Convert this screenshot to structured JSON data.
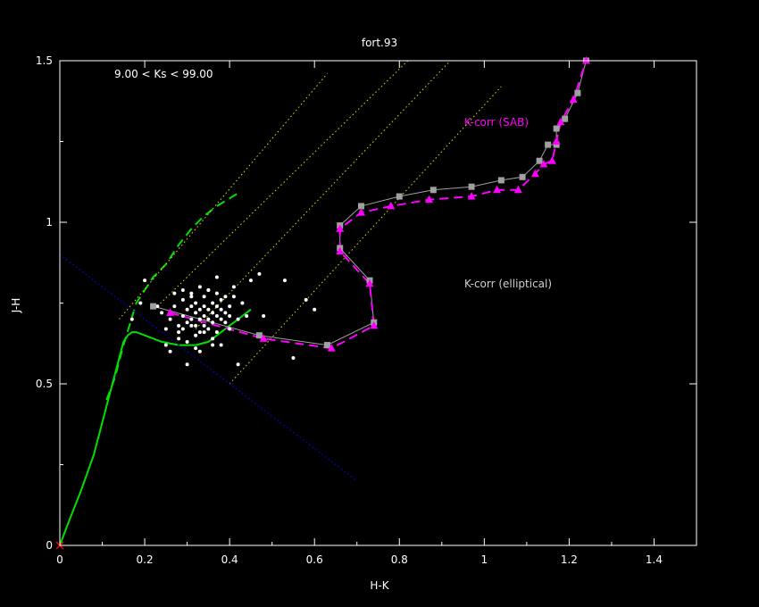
{
  "chart_data": {
    "type": "scatter",
    "title": "fort.93",
    "xlabel": "H-K",
    "ylabel": "J-H",
    "xlim": [
      0,
      1.5
    ],
    "ylim": [
      0,
      1.5
    ],
    "xticks": [
      0,
      0.2,
      0.4,
      0.6,
      0.8,
      1,
      1.2,
      1.4
    ],
    "xtick_labels": [
      "0",
      "0.2",
      "0.4",
      "0.6",
      "0.8",
      "1",
      "1.2",
      "1.4"
    ],
    "yticks": [
      0,
      0.5,
      1,
      1.5
    ],
    "ytick_labels": [
      "0",
      "0.5",
      "1",
      "1.5"
    ],
    "grid": false,
    "background": "#000000",
    "annotations": {
      "mag_range": "9.00 < Ks <  99.00",
      "k_corr_sab": "K-corr (SAB)",
      "k_corr_elliptical": "K-corr (elliptical)"
    },
    "colors": {
      "data_points": "#ffffff",
      "dwarf_giant_tracks": "#00e000",
      "reddening_lines": "#e0e000",
      "blue_line": "#0000cc",
      "elliptical_track": "#a0a0a0",
      "sab_track": "#ff00ff",
      "origin_marker": "#ff0000"
    },
    "series": [
      {
        "role": "dwarf_locus",
        "style": "solid",
        "x": [
          0.0,
          0.02,
          0.05,
          0.08,
          0.1,
          0.12,
          0.14,
          0.15,
          0.16,
          0.17,
          0.18,
          0.2,
          0.24,
          0.28,
          0.32,
          0.35,
          0.37,
          0.4,
          0.43,
          0.45
        ],
        "y": [
          0.0,
          0.07,
          0.17,
          0.28,
          0.38,
          0.48,
          0.58,
          0.63,
          0.65,
          0.66,
          0.66,
          0.65,
          0.63,
          0.62,
          0.62,
          0.63,
          0.65,
          0.68,
          0.71,
          0.73
        ]
      },
      {
        "role": "giant_locus",
        "style": "dashed",
        "x": [
          0.11,
          0.13,
          0.15,
          0.18,
          0.2,
          0.22,
          0.25,
          0.28,
          0.31,
          0.34,
          0.37,
          0.42
        ],
        "y": [
          0.45,
          0.52,
          0.62,
          0.75,
          0.79,
          0.83,
          0.87,
          0.93,
          0.98,
          1.02,
          1.05,
          1.09
        ]
      },
      {
        "role": "reddening_vector",
        "style": "dotted",
        "x": [
          0.14,
          0.63
        ],
        "y": [
          0.7,
          1.46
        ]
      },
      {
        "role": "reddening_vector",
        "style": "dotted",
        "x": [
          0.23,
          0.82
        ],
        "y": [
          0.74,
          1.5
        ]
      },
      {
        "role": "reddening_vector",
        "style": "dotted",
        "x": [
          0.32,
          0.92
        ],
        "y": [
          0.67,
          1.5
        ]
      },
      {
        "role": "reddening_vector",
        "style": "dotted",
        "x": [
          0.4,
          1.04
        ],
        "y": [
          0.5,
          1.42
        ]
      },
      {
        "role": "blue_boundary",
        "style": "dotted",
        "x": [
          0.0,
          0.7
        ],
        "y": [
          0.9,
          0.2
        ]
      },
      {
        "name": "K-corr (elliptical)",
        "role": "elliptical_track",
        "style": "solid",
        "marker": "square",
        "x": [
          0.22,
          0.47,
          0.63,
          0.74,
          0.73,
          0.66,
          0.66,
          0.71,
          0.8,
          0.88,
          0.97,
          1.04,
          1.09,
          1.13,
          1.15,
          1.17,
          1.17,
          1.19,
          1.22,
          1.24
        ],
        "y": [
          0.74,
          0.65,
          0.62,
          0.69,
          0.82,
          0.92,
          0.99,
          1.05,
          1.08,
          1.1,
          1.11,
          1.13,
          1.14,
          1.19,
          1.24,
          1.24,
          1.29,
          1.32,
          1.4,
          1.5
        ]
      },
      {
        "name": "K-corr (SAB)",
        "role": "sab_track",
        "style": "dashed",
        "marker": "triangle",
        "x": [
          0.26,
          0.48,
          0.64,
          0.74,
          0.73,
          0.66,
          0.66,
          0.71,
          0.78,
          0.87,
          0.97,
          1.03,
          1.08,
          1.12,
          1.14,
          1.16,
          1.17,
          1.18,
          1.21,
          1.24
        ],
        "y": [
          0.72,
          0.64,
          0.61,
          0.68,
          0.81,
          0.91,
          0.98,
          1.03,
          1.05,
          1.07,
          1.08,
          1.1,
          1.1,
          1.15,
          1.18,
          1.19,
          1.25,
          1.31,
          1.38,
          1.5
        ]
      }
    ],
    "points": {
      "x": [
        0.2,
        0.24,
        0.26,
        0.27,
        0.28,
        0.29,
        0.29,
        0.3,
        0.3,
        0.31,
        0.31,
        0.31,
        0.32,
        0.32,
        0.32,
        0.33,
        0.33,
        0.33,
        0.34,
        0.34,
        0.34,
        0.34,
        0.35,
        0.35,
        0.35,
        0.36,
        0.36,
        0.36,
        0.37,
        0.37,
        0.37,
        0.38,
        0.38,
        0.38,
        0.39,
        0.39,
        0.4,
        0.4,
        0.41,
        0.42,
        0.28,
        0.3,
        0.32,
        0.34,
        0.36,
        0.27,
        0.29,
        0.31,
        0.33,
        0.35,
        0.37,
        0.39,
        0.25,
        0.26,
        0.3,
        0.28,
        0.32,
        0.36,
        0.4,
        0.44,
        0.43,
        0.45,
        0.47,
        0.48,
        0.53,
        0.55,
        0.58,
        0.6,
        0.42,
        0.38,
        0.33,
        0.25,
        0.23,
        0.19,
        0.17,
        0.41,
        0.37,
        0.29,
        0.31,
        0.35
      ],
      "y": [
        0.82,
        0.72,
        0.7,
        0.74,
        0.68,
        0.71,
        0.76,
        0.69,
        0.73,
        0.7,
        0.74,
        0.77,
        0.68,
        0.72,
        0.75,
        0.7,
        0.73,
        0.66,
        0.71,
        0.74,
        0.68,
        0.77,
        0.7,
        0.73,
        0.67,
        0.72,
        0.75,
        0.69,
        0.71,
        0.74,
        0.66,
        0.7,
        0.73,
        0.76,
        0.69,
        0.72,
        0.71,
        0.74,
        0.77,
        0.7,
        0.64,
        0.63,
        0.65,
        0.66,
        0.64,
        0.78,
        0.79,
        0.78,
        0.8,
        0.79,
        0.78,
        0.77,
        0.62,
        0.6,
        0.56,
        0.66,
        0.61,
        0.62,
        0.67,
        0.71,
        0.75,
        0.82,
        0.84,
        0.71,
        0.82,
        0.58,
        0.76,
        0.73,
        0.56,
        0.62,
        0.6,
        0.67,
        0.74,
        0.75,
        0.7,
        0.8,
        0.83,
        0.67,
        0.68,
        0.79
      ]
    },
    "origin_marker": {
      "x": 0,
      "y": 0,
      "symbol": "x"
    }
  }
}
